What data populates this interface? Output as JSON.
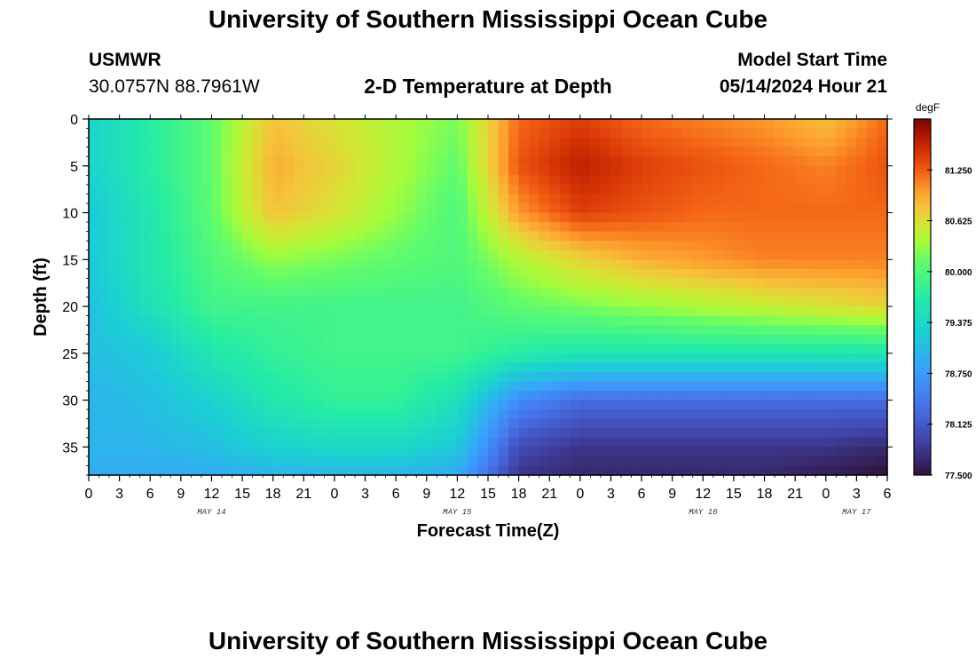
{
  "header": {
    "title": "University of Southern Mississippi Ocean Cube",
    "station": "USMWR",
    "coords": "30.0757N  88.7961W",
    "plot_title": "2-D Temperature at Depth",
    "model_start_label": "Model Start Time",
    "model_start_value": "05/14/2024 Hour 21"
  },
  "footer": {
    "title": "University of Southern Mississippi Ocean Cube"
  },
  "chart_data": {
    "type": "heatmap",
    "title": "2-D Temperature at Depth",
    "xlabel": "Forecast Time(Z)",
    "ylabel": "Depth (ft)",
    "x_range_hours": [
      0,
      78
    ],
    "y_range": [
      0,
      38
    ],
    "y_inverted": true,
    "x_tick_labels": [
      "0",
      "3",
      "6",
      "9",
      "12",
      "15",
      "18",
      "21",
      "0",
      "3",
      "6",
      "9",
      "12",
      "15",
      "18",
      "21",
      "0",
      "3",
      "6",
      "9",
      "12",
      "15",
      "18",
      "21",
      "0",
      "3",
      "6"
    ],
    "y_ticks": [
      0,
      5,
      10,
      15,
      20,
      25,
      30,
      35
    ],
    "day_labels": [
      {
        "label": "MAY 14",
        "hour": 12
      },
      {
        "label": "MAY 15",
        "hour": 36
      },
      {
        "label": "MAY 16",
        "hour": 60
      },
      {
        "label": "MAY 17",
        "hour": 75
      }
    ],
    "colorbar": {
      "unit": "degF",
      "min": 77.5,
      "max": 81.875,
      "tick_labels": [
        "81.250",
        "80.625",
        "80.000",
        "79.375",
        "78.750",
        "78.125",
        "77.500"
      ],
      "tick_values": [
        81.25,
        80.625,
        80.0,
        79.375,
        78.75,
        78.125,
        77.5
      ],
      "colormap": "turbo"
    },
    "depth_levels": [
      0,
      5,
      10,
      15,
      20,
      25,
      30,
      35,
      38
    ],
    "time_points": [
      0,
      6,
      12,
      18,
      24,
      30,
      36,
      42,
      48,
      54,
      60,
      66,
      72,
      78
    ],
    "values_degF": [
      [
        79.3,
        79.7,
        80.1,
        80.8,
        80.6,
        80.4,
        80.2,
        81.2,
        81.4,
        81.2,
        81.1,
        81.0,
        80.8,
        81.2
      ],
      [
        79.3,
        79.7,
        80.1,
        80.9,
        80.7,
        80.4,
        80.1,
        81.3,
        81.6,
        81.4,
        81.3,
        81.2,
        81.1,
        81.3
      ],
      [
        79.2,
        79.6,
        80.1,
        80.8,
        80.6,
        80.3,
        80.0,
        81.0,
        81.4,
        81.3,
        81.2,
        81.2,
        81.2,
        81.2
      ],
      [
        79.2,
        79.6,
        80.0,
        80.3,
        80.2,
        80.1,
        80.0,
        80.4,
        80.7,
        80.9,
        81.0,
        81.1,
        81.1,
        81.1
      ],
      [
        79.1,
        79.5,
        79.9,
        79.9,
        79.9,
        79.9,
        79.9,
        80.1,
        80.2,
        80.3,
        80.4,
        80.5,
        80.6,
        80.7
      ],
      [
        79.1,
        79.2,
        79.6,
        79.8,
        79.9,
        79.9,
        79.9,
        79.7,
        79.6,
        79.6,
        79.6,
        79.6,
        79.6,
        79.6
      ],
      [
        79.0,
        79.1,
        79.3,
        79.6,
        79.8,
        79.8,
        79.5,
        78.6,
        78.3,
        78.3,
        78.3,
        78.3,
        78.3,
        78.3
      ],
      [
        79.0,
        79.0,
        79.1,
        79.3,
        79.4,
        79.4,
        79.2,
        78.0,
        77.8,
        77.8,
        77.8,
        77.8,
        77.8,
        77.7
      ],
      [
        78.9,
        78.9,
        78.9,
        79.0,
        79.0,
        79.0,
        78.9,
        77.8,
        77.7,
        77.7,
        77.7,
        77.7,
        77.6,
        77.5
      ]
    ]
  }
}
